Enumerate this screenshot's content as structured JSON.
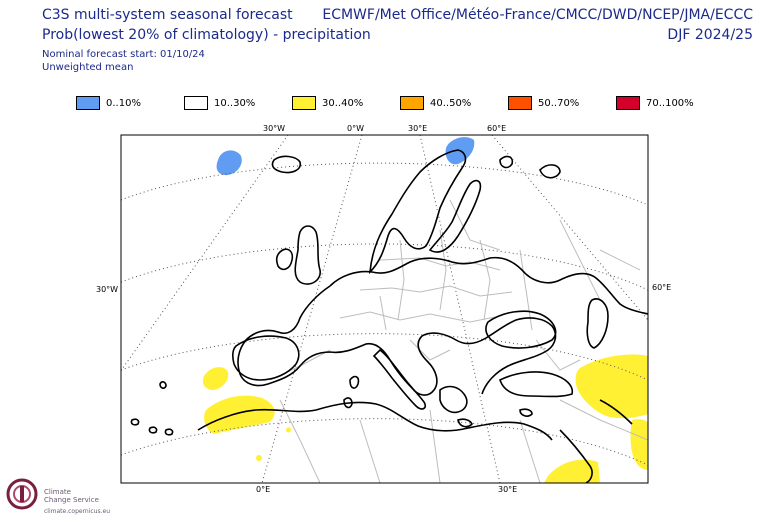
{
  "header": {
    "title_line1": "C3S multi-system seasonal forecast",
    "title_line2": "Prob(lowest 20% of climatology) - precipitation",
    "nominal_start": "Nominal forecast start: 01/10/24",
    "weighting": "Unweighted mean",
    "systems": "ECMWF/Met Office/Météo-France/CMCC/DWD/NCEP/JMA/ECCC",
    "season": "DJF 2024/25"
  },
  "legend": [
    {
      "label": "0..10%",
      "color": "#5f9cf2"
    },
    {
      "label": "10..30%",
      "color": "#ffffff"
    },
    {
      "label": "30..40%",
      "color": "#fff033"
    },
    {
      "label": "40..50%",
      "color": "#ffa500"
    },
    {
      "label": "50..70%",
      "color": "#ff5000"
    },
    {
      "label": "70..100%",
      "color": "#d2002a"
    }
  ],
  "graticule_labels": {
    "top": [
      "30°W",
      "0°W",
      "30°E",
      "60°E"
    ],
    "left": [
      "30°W"
    ],
    "right": [
      "60°E"
    ],
    "bottom": [
      "0°E",
      "30°E"
    ]
  },
  "footer": {
    "logo_line1": "Climate",
    "logo_line2": "Change Service",
    "url": "climate.copernicus.eu"
  }
}
